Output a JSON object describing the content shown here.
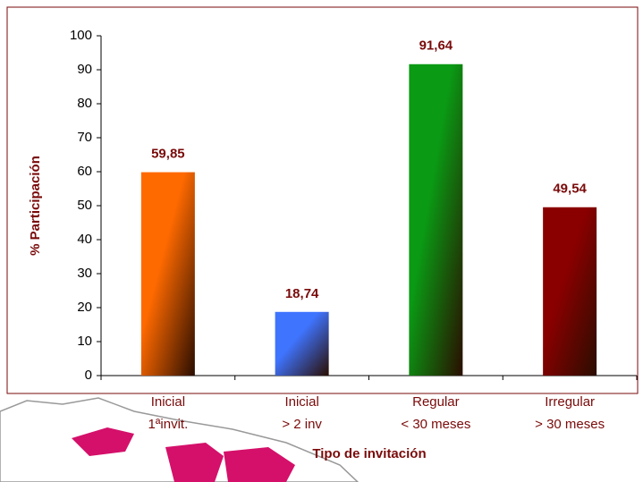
{
  "chart_data": {
    "type": "bar",
    "categories": [
      [
        "Inicial",
        "1ªinvit."
      ],
      [
        "Inicial",
        "> 2 inv"
      ],
      [
        "Regular",
        "< 30 meses"
      ],
      [
        "Irregular",
        "> 30 meses"
      ]
    ],
    "values": [
      59.85,
      18.74,
      91.64,
      49.54
    ],
    "value_labels": [
      "59,85",
      "18,74",
      "91,64",
      "49,54"
    ],
    "colors": [
      "#ff6a00",
      "#3f74ff",
      "#0a9a14",
      "#8a0000"
    ],
    "ylim": [
      0,
      100
    ],
    "yticks": [
      0,
      10,
      20,
      30,
      40,
      50,
      60,
      70,
      80,
      90,
      100
    ],
    "xlabel": "Tipo de invitación",
    "ylabel": "% Participación"
  }
}
